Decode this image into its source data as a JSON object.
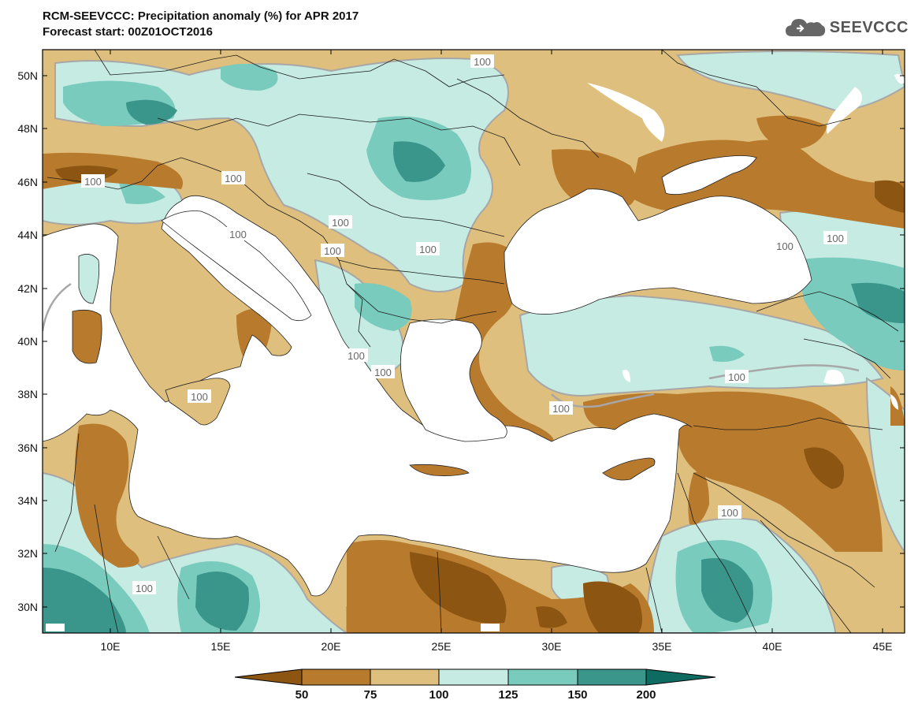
{
  "header": {
    "title": "RCM-SEEVCCC: Precipitation anomaly (%) for APR 2017",
    "subtitle": "Forecast start: 00Z01OCT2016",
    "logo_text": "SEEVCCC"
  },
  "axes": {
    "lat_labels": [
      "50N",
      "48N",
      "46N",
      "44N",
      "42N",
      "40N",
      "38N",
      "36N",
      "34N",
      "32N",
      "30N"
    ],
    "lon_labels": [
      "10E",
      "15E",
      "20E",
      "25E",
      "30E",
      "35E",
      "40E",
      "45E"
    ]
  },
  "contour_labels": [
    "100",
    "100",
    "100",
    "100",
    "100",
    "100",
    "100",
    "100",
    "100",
    "100",
    "100",
    "100",
    "100",
    "100",
    "100",
    "100"
  ],
  "legend": {
    "levels": [
      "50",
      "75",
      "100",
      "125",
      "150",
      "200"
    ],
    "colors": [
      "#8c5512",
      "#b87b2e",
      "#dfbf7d",
      "#c6ebe3",
      "#79cbbd",
      "#3a958a",
      "#0d6b61"
    ]
  },
  "palette": {
    "sea": "#ffffff",
    "very_dry": "#8c5512",
    "dry": "#b87b2e",
    "slightly_dry": "#dfbf7d",
    "slightly_wet": "#c6ebe3",
    "wet": "#79cbbd",
    "very_wet": "#3a958a"
  }
}
